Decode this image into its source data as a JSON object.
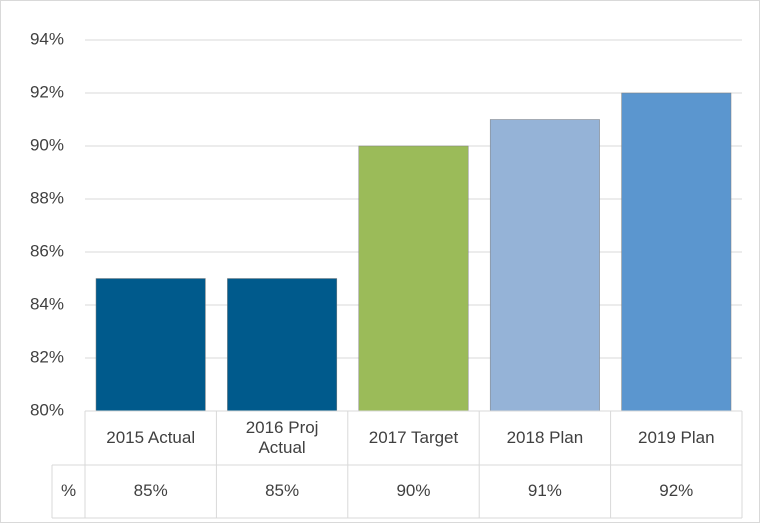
{
  "chart_data": {
    "type": "bar",
    "categories": [
      "2015 Actual",
      "2016 Proj\nActual",
      "2017 Target",
      "2018 Plan",
      "2019 Plan"
    ],
    "values": [
      85,
      85,
      90,
      91,
      92
    ],
    "value_labels": [
      "85%",
      "85%",
      "90%",
      "91%",
      "92%"
    ],
    "colors": [
      "#005a8c",
      "#005a8c",
      "#9bbb59",
      "#95b3d7",
      "#5b96cf"
    ],
    "table_row_label": "%",
    "ylim": [
      80,
      94
    ],
    "yticks": [
      {
        "value": 80,
        "label": "80%"
      },
      {
        "value": 82,
        "label": "82%"
      },
      {
        "value": 84,
        "label": "84%"
      },
      {
        "value": 86,
        "label": "86%"
      },
      {
        "value": 88,
        "label": "88%"
      },
      {
        "value": 90,
        "label": "90%"
      },
      {
        "value": 92,
        "label": "92%"
      },
      {
        "value": 94,
        "label": "94%"
      }
    ],
    "grid": true
  }
}
